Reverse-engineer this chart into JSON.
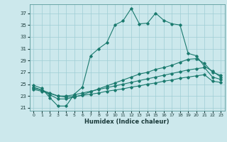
{
  "xlabel": "Humidex (Indice chaleur)",
  "bg_color": "#cce8ec",
  "grid_color": "#9fcdd4",
  "line_color": "#1a7a6e",
  "xlim": [
    -0.5,
    23.5
  ],
  "ylim": [
    20.5,
    38.5
  ],
  "xticks": [
    0,
    1,
    2,
    3,
    4,
    5,
    6,
    7,
    8,
    9,
    10,
    11,
    12,
    13,
    14,
    15,
    16,
    17,
    18,
    19,
    20,
    21,
    22,
    23
  ],
  "yticks": [
    21,
    23,
    25,
    27,
    29,
    31,
    33,
    35,
    37
  ],
  "line1_x": [
    0,
    1,
    2,
    3,
    4,
    5,
    6,
    7,
    8,
    9,
    10,
    11,
    12,
    13,
    14,
    15,
    16,
    17,
    18,
    19,
    20,
    21,
    22,
    23
  ],
  "line1_y": [
    24.8,
    24.3,
    22.7,
    21.3,
    21.3,
    23.3,
    24.5,
    29.8,
    31.0,
    32.0,
    35.0,
    35.7,
    37.8,
    35.2,
    35.3,
    37.0,
    35.8,
    35.2,
    35.0,
    30.2,
    29.8,
    28.0,
    27.2,
    26.2
  ],
  "line2_x": [
    0,
    1,
    2,
    3,
    4,
    5,
    6,
    7,
    8,
    9,
    10,
    11,
    12,
    13,
    14,
    15,
    16,
    17,
    18,
    19,
    20,
    21,
    22,
    23
  ],
  "line2_y": [
    24.5,
    24.0,
    23.2,
    22.5,
    22.5,
    22.8,
    23.2,
    23.7,
    24.2,
    24.7,
    25.2,
    25.7,
    26.2,
    26.7,
    27.0,
    27.5,
    27.8,
    28.2,
    28.7,
    29.2,
    29.3,
    28.5,
    27.0,
    26.5
  ],
  "line3_x": [
    0,
    1,
    2,
    3,
    4,
    5,
    6,
    7,
    8,
    9,
    10,
    11,
    12,
    13,
    14,
    15,
    16,
    17,
    18,
    19,
    20,
    21,
    22,
    23
  ],
  "line3_y": [
    24.3,
    24.0,
    23.5,
    23.0,
    23.0,
    23.2,
    23.5,
    23.8,
    24.1,
    24.4,
    24.7,
    25.0,
    25.3,
    25.6,
    25.9,
    26.2,
    26.5,
    26.8,
    27.1,
    27.4,
    27.6,
    27.8,
    26.2,
    25.8
  ],
  "line4_x": [
    0,
    1,
    2,
    3,
    4,
    5,
    6,
    7,
    8,
    9,
    10,
    11,
    12,
    13,
    14,
    15,
    16,
    17,
    18,
    19,
    20,
    21,
    22,
    23
  ],
  "line4_y": [
    24.1,
    23.8,
    23.4,
    23.0,
    22.8,
    22.9,
    23.1,
    23.3,
    23.5,
    23.8,
    24.0,
    24.2,
    24.5,
    24.7,
    25.0,
    25.2,
    25.5,
    25.7,
    26.0,
    26.2,
    26.4,
    26.6,
    25.5,
    25.3
  ]
}
